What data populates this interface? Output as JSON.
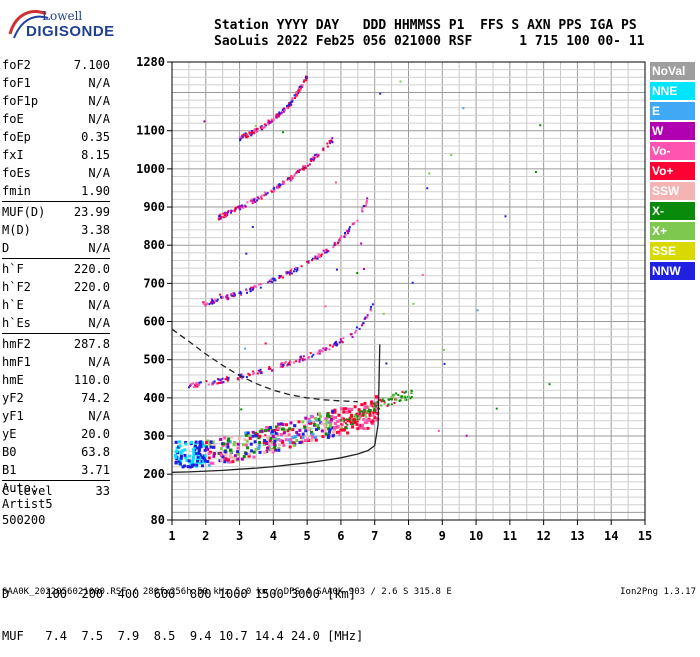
{
  "header": {
    "line1": "Station YYYY DAY   DDD HHMMSS P1  FFS S AXN PPS IGA PS",
    "line2": "SaoLuis 2022 Feb25 056 021000 RSF      1 715 100 00- 11"
  },
  "logo": {
    "line1": "Lowell",
    "line2": "DIGISONDE"
  },
  "parameters": [
    {
      "key": "foF2",
      "value": "7.100"
    },
    {
      "key": "foF1",
      "value": "N/A"
    },
    {
      "key": "foF1p",
      "value": "N/A"
    },
    {
      "key": "foE",
      "value": "N/A"
    },
    {
      "key": "foEp",
      "value": "0.35"
    },
    {
      "key": "fxI",
      "value": "8.15"
    },
    {
      "key": "foEs",
      "value": "N/A"
    },
    {
      "key": "fmin",
      "value": "1.90"
    },
    {
      "key": "MUF(D)",
      "value": "23.99",
      "sep": true
    },
    {
      "key": "M(D)",
      "value": "3.38"
    },
    {
      "key": "D",
      "value": "N/A"
    },
    {
      "key": "h`F",
      "value": "220.0",
      "sep": true
    },
    {
      "key": "h`F2",
      "value": "220.0"
    },
    {
      "key": "h`E",
      "value": "N/A"
    },
    {
      "key": "h`Es",
      "value": "N/A"
    },
    {
      "key": "hmF2",
      "value": "287.8",
      "sep": true
    },
    {
      "key": "hmF1",
      "value": "N/A"
    },
    {
      "key": "hmE",
      "value": "110.0"
    },
    {
      "key": "yF2",
      "value": "74.2"
    },
    {
      "key": "yF1",
      "value": "N/A"
    },
    {
      "key": "yE",
      "value": "20.0"
    },
    {
      "key": "B0",
      "value": "63.8"
    },
    {
      "key": "B1",
      "value": "3.71"
    },
    {
      "key": "C-level",
      "value": "33",
      "sep": true
    }
  ],
  "auto": {
    "line1": "Auto:",
    "line2": "Artist5",
    "line3": "500200"
  },
  "d_muf": {
    "d_line": "D     100  200  400  600  800 1000 1500 3000 [km]",
    "muf_line": "MUF   7.4  7.5  7.9  8.5  9.4 10.7 14.4 24.0 [MHz]"
  },
  "footer": {
    "left": "SAA0K_2022056021000.RSF / 280fx256h 50 kHz 5.0 km / DPS-4 SAA0K 903 / 2.6 S 315.8 E",
    "right": "Ion2Png 1.3.17"
  },
  "legend": [
    {
      "label": "NoVal",
      "color": "#9e9e9e"
    },
    {
      "label": "NNE",
      "color": "#00e5ff"
    },
    {
      "label": "E",
      "color": "#3fa9f5"
    },
    {
      "label": "W",
      "color": "#b000b0"
    },
    {
      "label": "Vo-",
      "color": "#ff55b0"
    },
    {
      "label": "Vo+",
      "color": "#ff0033"
    },
    {
      "label": "SSW",
      "color": "#f5b4b4"
    },
    {
      "label": "X-",
      "color": "#0a8a0a"
    },
    {
      "label": "X+",
      "color": "#7ec850"
    },
    {
      "label": "SSE",
      "color": "#d9d900"
    },
    {
      "label": "NNW",
      "color": "#2020e0"
    }
  ],
  "chart_data": {
    "type": "scatter",
    "xlim": [
      1,
      15
    ],
    "ylim": [
      80,
      1280
    ],
    "x_ticks": [
      "1",
      "2",
      "3",
      "4",
      "5",
      "6",
      "7",
      "8",
      "9",
      "10",
      "11",
      "12",
      "13",
      "14",
      "15"
    ],
    "y_ticks": [
      {
        "v": 80,
        "label": "80"
      },
      {
        "v": 200,
        "label": "200"
      },
      {
        "v": 300,
        "label": "300"
      },
      {
        "v": 400,
        "label": "400"
      },
      {
        "v": 500,
        "label": "500"
      },
      {
        "v": 600,
        "label": "600"
      },
      {
        "v": 700,
        "label": "700"
      },
      {
        "v": 800,
        "label": "800"
      },
      {
        "v": 900,
        "label": "900"
      },
      {
        "v": 1000,
        "label": "1000"
      },
      {
        "v": 1100,
        "label": "1100"
      },
      {
        "v": 1280,
        "label": "1280"
      }
    ],
    "grid": true,
    "traces": [
      {
        "name": "o-trace 1st hop",
        "x": [
          1.1,
          1.5,
          2.0,
          2.5,
          3.0,
          3.5,
          4.0,
          4.5,
          5.0,
          5.5,
          6.0,
          6.5,
          6.8,
          7.0,
          7.1
        ],
        "y": [
          215,
          218,
          222,
          228,
          236,
          246,
          258,
          270,
          282,
          292,
          302,
          312,
          320,
          330,
          345
        ]
      },
      {
        "name": "2nd hop",
        "x": [
          1.5,
          2.0,
          2.5,
          3.0,
          3.5,
          4.0,
          4.5,
          5.0,
          5.5,
          6.0,
          6.3,
          6.6,
          6.8,
          6.95
        ],
        "y": [
          430,
          438,
          446,
          455,
          466,
          478,
          492,
          508,
          526,
          548,
          565,
          590,
          615,
          650
        ]
      },
      {
        "name": "3rd hop",
        "x": [
          1.9,
          2.3,
          2.8,
          3.3,
          3.8,
          4.3,
          4.8,
          5.3,
          5.8,
          6.2,
          6.5,
          6.75,
          6.9
        ],
        "y": [
          645,
          655,
          668,
          683,
          700,
          720,
          742,
          768,
          800,
          835,
          870,
          910,
          950
        ]
      },
      {
        "name": "4th hop",
        "x": [
          2.3,
          2.7,
          3.1,
          3.6,
          4.1,
          4.6,
          5.0,
          5.4,
          5.8
        ],
        "y": [
          870,
          885,
          902,
          925,
          950,
          980,
          1010,
          1045,
          1080
        ]
      },
      {
        "name": "5th hop",
        "x": [
          3.0,
          3.5,
          4.0,
          4.5,
          5.0
        ],
        "y": [
          1080,
          1100,
          1130,
          1170,
          1240
        ]
      },
      {
        "name": "x-trace",
        "x": [
          6.0,
          6.3,
          6.6,
          6.9,
          7.2,
          7.5,
          7.8,
          8.1
        ],
        "y": [
          330,
          340,
          355,
          370,
          385,
          395,
          405,
          410
        ]
      }
    ],
    "profile_solid": {
      "x": [
        1,
        1.5,
        2,
        2.5,
        3,
        3.5,
        4,
        4.5,
        5,
        5.5,
        6,
        6.5,
        6.8,
        7,
        7.1,
        7.15
      ],
      "y": [
        205,
        206,
        208,
        210,
        213,
        216,
        220,
        225,
        230,
        236,
        243,
        253,
        262,
        275,
        330,
        540
      ]
    },
    "profile_dashed": {
      "x": [
        1,
        1.5,
        2,
        2.5,
        3,
        3.5,
        4,
        4.5,
        5,
        5.5,
        6,
        6.5
      ],
      "y": [
        580,
        548,
        515,
        485,
        458,
        437,
        420,
        408,
        400,
        395,
        392,
        390
      ]
    }
  }
}
